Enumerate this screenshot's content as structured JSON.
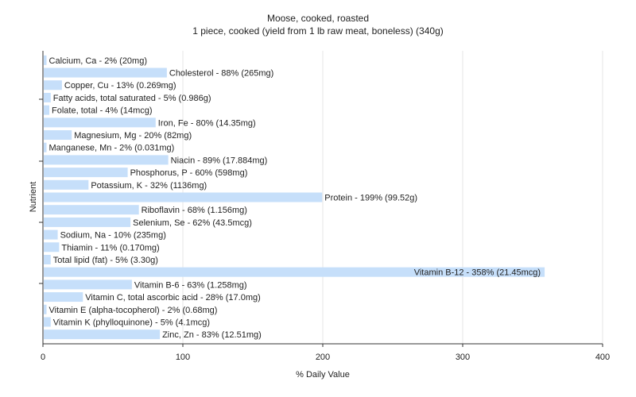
{
  "chart_data": {
    "type": "bar",
    "orientation": "horizontal",
    "title": "Moose, cooked, roasted",
    "subtitle": "1 piece, cooked (yield from 1 lb raw meat, boneless) (340g)",
    "xlabel": "% Daily Value",
    "ylabel": "Nutrient",
    "xlim": [
      0,
      400
    ],
    "xticks": [
      "0",
      "100",
      "200",
      "300",
      "400"
    ],
    "grid": true,
    "bar_color": "#c6dffa",
    "categories": [
      "Calcium, Ca - 2% (20mg)",
      "Cholesterol - 88% (265mg)",
      "Copper, Cu - 13% (0.269mg)",
      "Fatty acids, total saturated - 5% (0.986g)",
      "Folate, total - 4% (14mcg)",
      "Iron, Fe - 80% (14.35mg)",
      "Magnesium, Mg - 20% (82mg)",
      "Manganese, Mn - 2% (0.031mg)",
      "Niacin - 89% (17.884mg)",
      "Phosphorus, P - 60% (598mg)",
      "Potassium, K - 32% (1136mg)",
      "Protein - 199% (99.52g)",
      "Riboflavin - 68% (1.156mg)",
      "Selenium, Se - 62% (43.5mcg)",
      "Sodium, Na - 10% (235mg)",
      "Thiamin - 11% (0.170mg)",
      "Total lipid (fat) - 5% (3.30g)",
      "Vitamin B-12 - 358% (21.45mcg)",
      "Vitamin B-6 - 63% (1.258mg)",
      "Vitamin C, total ascorbic acid - 28% (17.0mg)",
      "Vitamin E (alpha-tocopherol) - 2% (0.68mg)",
      "Vitamin K (phylloquinone) - 5% (4.1mcg)",
      "Zinc, Zn - 83% (12.51mg)"
    ],
    "values": [
      2,
      88,
      13,
      5,
      4,
      80,
      20,
      2,
      89,
      60,
      32,
      199,
      68,
      62,
      10,
      11,
      5,
      358,
      63,
      28,
      2,
      5,
      83
    ]
  }
}
